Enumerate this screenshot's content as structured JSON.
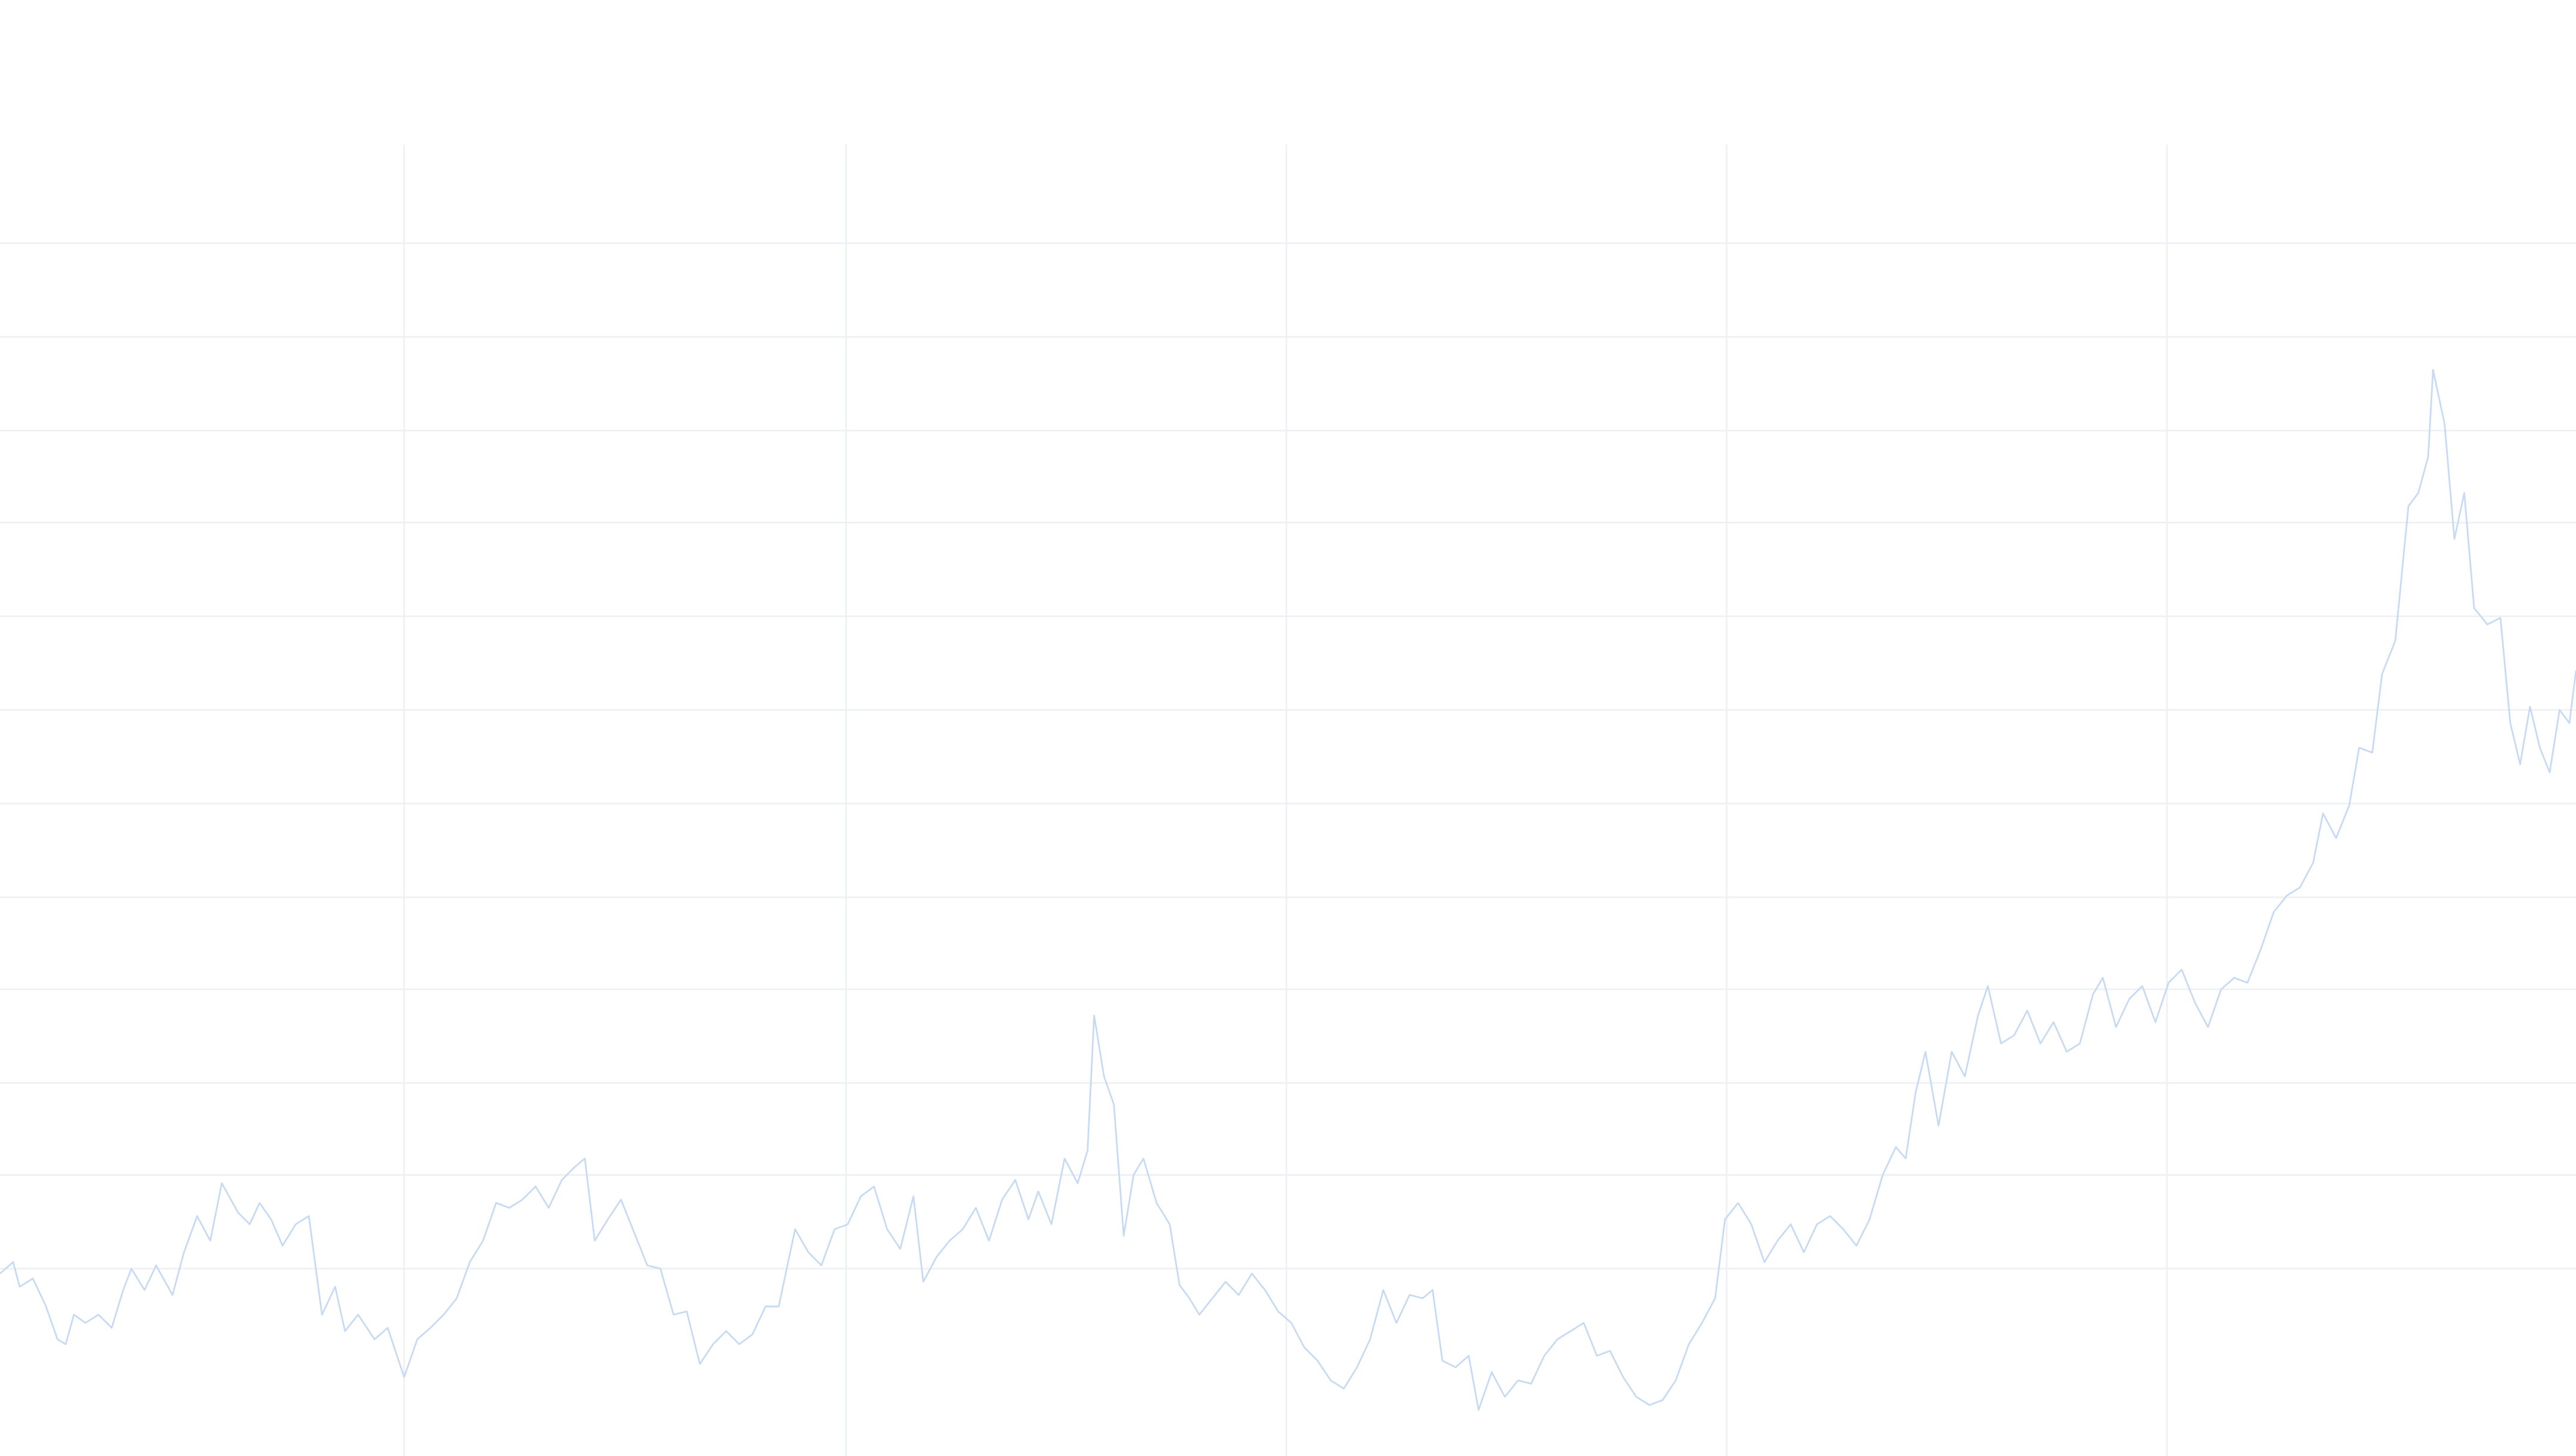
{
  "chart_data": {
    "type": "line",
    "color": "#c6daf3",
    "grid": true,
    "xlim": [
      0,
      1568
    ],
    "ylim": [
      0,
      886
    ],
    "xticks": [
      246,
      515,
      783,
      1051,
      1319
    ],
    "yticks": [
      114,
      171,
      227,
      284,
      340,
      397,
      454,
      511,
      568,
      624,
      681,
      738
    ],
    "x": [
      0,
      8,
      12,
      20,
      28,
      35,
      40,
      45,
      52,
      60,
      68,
      75,
      80,
      88,
      95,
      105,
      112,
      120,
      128,
      135,
      145,
      152,
      158,
      165,
      172,
      180,
      188,
      196,
      204,
      210,
      218,
      228,
      236,
      246,
      254,
      262,
      270,
      278,
      286,
      294,
      302,
      310,
      318,
      326,
      334,
      342,
      350,
      356,
      362,
      370,
      378,
      386,
      394,
      402,
      410,
      418,
      426,
      434,
      442,
      450,
      458,
      466,
      474,
      484,
      492,
      500,
      508,
      516,
      524,
      532,
      540,
      548,
      556,
      562,
      570,
      578,
      586,
      594,
      602,
      610,
      618,
      626,
      632,
      640,
      648,
      656,
      662,
      666,
      672,
      678,
      684,
      690,
      696,
      704,
      712,
      718,
      724,
      730,
      738,
      746,
      754,
      762,
      770,
      778,
      786,
      794,
      802,
      810,
      818,
      826,
      834,
      842,
      850,
      858,
      866,
      872,
      878,
      886,
      894,
      900,
      908,
      916,
      924,
      932,
      940,
      948,
      956,
      964,
      972,
      980,
      988,
      996,
      1004,
      1012,
      1020,
      1028,
      1036,
      1044,
      1050,
      1058,
      1066,
      1074,
      1082,
      1090,
      1098,
      1106,
      1114,
      1122,
      1130,
      1138,
      1146,
      1154,
      1160,
      1166,
      1172,
      1180,
      1188,
      1196,
      1204,
      1210,
      1218,
      1226,
      1234,
      1242,
      1250,
      1258,
      1266,
      1274,
      1280,
      1288,
      1296,
      1304,
      1312,
      1320,
      1328,
      1336,
      1344,
      1352,
      1360,
      1368,
      1376,
      1384,
      1392,
      1400,
      1408,
      1414,
      1422,
      1430,
      1436,
      1444,
      1450,
      1458,
      1466,
      1472,
      1478,
      1481,
      1488,
      1494,
      1500,
      1506,
      1514,
      1522,
      1528,
      1534,
      1540,
      1546,
      1552,
      1558,
      1564,
      1568
    ],
    "values": [
      111,
      118,
      103,
      108,
      91,
      71,
      68,
      86,
      81,
      86,
      78,
      101,
      114,
      101,
      116,
      98,
      124,
      146,
      131,
      166,
      148,
      141,
      154,
      144,
      128,
      141,
      146,
      86,
      103,
      76,
      86,
      71,
      78,
      48,
      71,
      78,
      86,
      96,
      118,
      131,
      154,
      151,
      156,
      164,
      151,
      168,
      176,
      181,
      131,
      144,
      156,
      136,
      116,
      114,
      86,
      88,
      56,
      68,
      76,
      68,
      74,
      91,
      91,
      138,
      124,
      116,
      138,
      141,
      158,
      164,
      138,
      126,
      158,
      106,
      121,
      131,
      138,
      151,
      131,
      156,
      168,
      144,
      161,
      141,
      181,
      166,
      186,
      268,
      231,
      214,
      134,
      171,
      181,
      154,
      141,
      104,
      96,
      86,
      96,
      106,
      98,
      111,
      101,
      88,
      81,
      66,
      58,
      46,
      41,
      54,
      71,
      101,
      81,
      98,
      96,
      101,
      58,
      54,
      61,
      28,
      51,
      36,
      46,
      44,
      61,
      71,
      76,
      81,
      61,
      64,
      48,
      36,
      31,
      34,
      46,
      68,
      81,
      96,
      144,
      154,
      141,
      118,
      131,
      141,
      124,
      141,
      146,
      138,
      128,
      144,
      171,
      188,
      181,
      221,
      246,
      201,
      246,
      231,
      268,
      286,
      251,
      256,
      271,
      251,
      264,
      246,
      251,
      281,
      291,
      261,
      278,
      286,
      264,
      288,
      296,
      276,
      261,
      284,
      291,
      288,
      308,
      331,
      341,
      346,
      361,
      391,
      376,
      396,
      431,
      428,
      476,
      496,
      578,
      586,
      608,
      661,
      628,
      558,
      586,
      516,
      506,
      510,
      446,
      421,
      456,
      431,
      416,
      454,
      446,
      478
    ]
  }
}
